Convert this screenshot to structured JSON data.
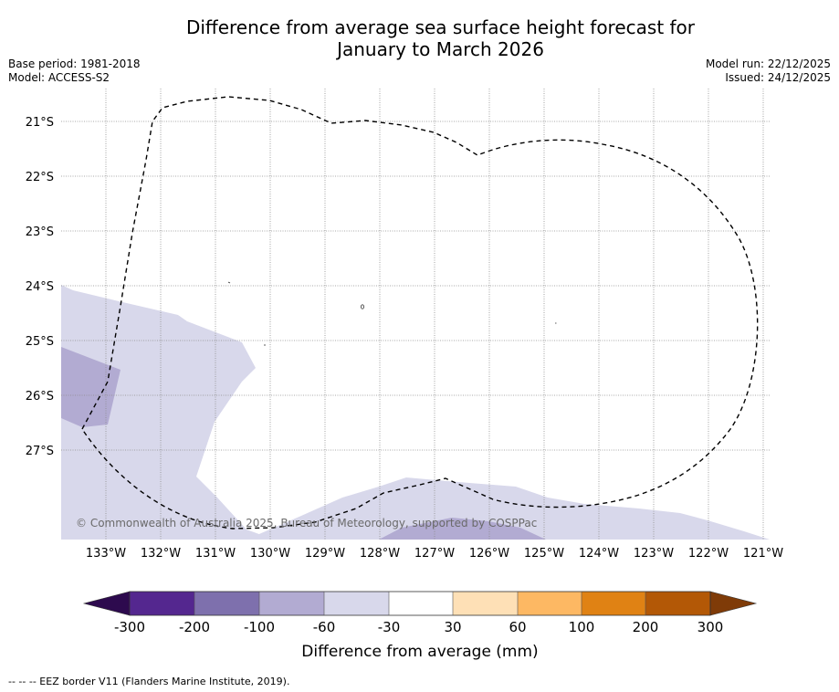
{
  "title": {
    "line1": "Difference from average sea surface height forecast for",
    "line2": "January to March 2026"
  },
  "meta": {
    "base_period": "Base period: 1981-2018",
    "model": "Model: ACCESS-S2",
    "model_run": "Model run: 22/12/2025",
    "issued": "Issued: 24/12/2025"
  },
  "map": {
    "lon_ticks": [
      "133°W",
      "132°W",
      "131°W",
      "130°W",
      "129°W",
      "128°W",
      "127°W",
      "126°W",
      "125°W",
      "124°W",
      "123°W",
      "122°W",
      "121°W"
    ],
    "lat_ticks": [
      "21°S",
      "22°S",
      "23°S",
      "24°S",
      "25°S",
      "26°S",
      "27°S"
    ],
    "copyright": "© Commonwealth of Australia 2025, Bureau of Meteorology, supported by COSPPac"
  },
  "colorbar": {
    "tick_labels": [
      "-300",
      "-200",
      "-100",
      "-60",
      "-30",
      "30",
      "60",
      "100",
      "200",
      "300"
    ],
    "colors": {
      "under": "#2d0a4e",
      "bins": [
        "#54278f",
        "#7e70ad",
        "#b2abd2",
        "#d8d8eb",
        "#ffffff",
        "#fee0b6",
        "#fdb863",
        "#e08214",
        "#b35806"
      ],
      "over": "#7f3b08"
    },
    "label": "Difference from average (mm)"
  },
  "footer": {
    "legend_text": "--  --  -- EEZ border V11 (Flanders Marine Institute, 2019)."
  }
}
